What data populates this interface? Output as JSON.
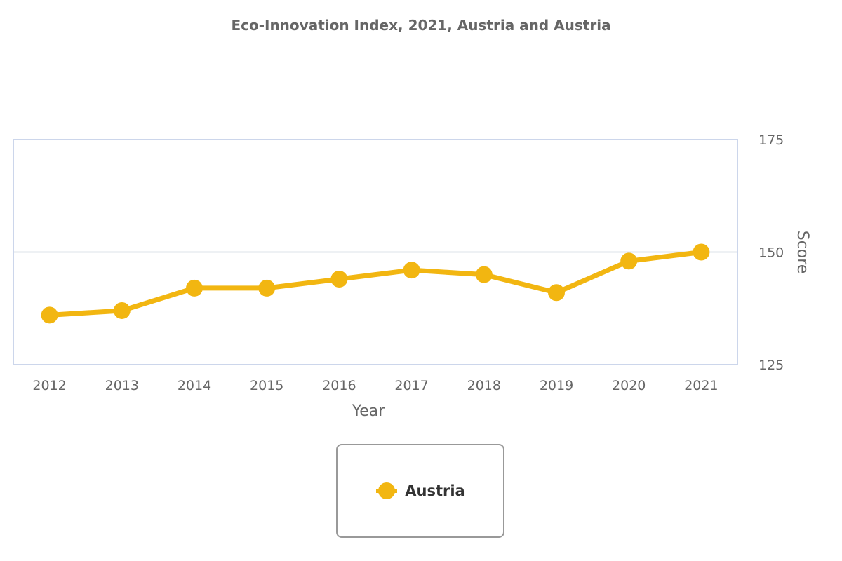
{
  "chart_data": {
    "type": "line",
    "title": "Eco-Innovation Index, 2021, Austria and Austria",
    "xlabel": "Year",
    "ylabel": "Score",
    "x": [
      "2012",
      "2013",
      "2014",
      "2015",
      "2016",
      "2017",
      "2018",
      "2019",
      "2020",
      "2021"
    ],
    "yticks": [
      "125",
      "150",
      "175"
    ],
    "ylim": [
      125,
      175
    ],
    "y_axis_position": "right",
    "grid": true,
    "legend_position": "bottom-center",
    "series": [
      {
        "name": "Austria",
        "color": "#f2b611",
        "values": [
          136,
          137,
          142,
          142,
          144,
          146,
          145,
          141,
          148,
          150
        ]
      }
    ]
  }
}
